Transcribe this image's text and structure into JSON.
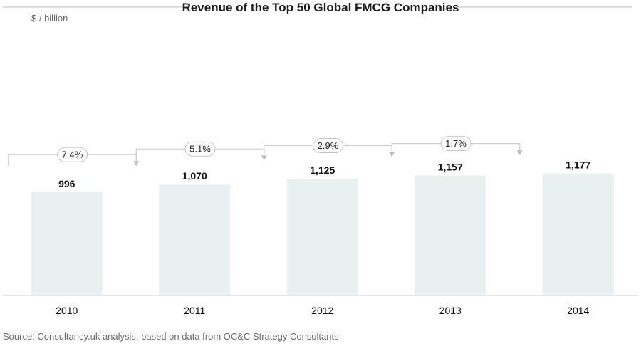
{
  "chart_data": {
    "type": "bar",
    "title": "Revenue of the Top 50 Global FMCG Companies",
    "ylabel": "$ / billion",
    "xlabel": "",
    "categories": [
      "2010",
      "2011",
      "2012",
      "2013",
      "2014"
    ],
    "values": [
      996,
      1070,
      1125,
      1157,
      1177
    ],
    "value_labels": [
      "996",
      "1,070",
      "1,125",
      "1,157",
      "1,177"
    ],
    "growth_labels": [
      "7.4%",
      "5.1%",
      "2.9%",
      "1.7%"
    ],
    "ylim": [
      0,
      1300
    ],
    "grid": false,
    "legend": "none",
    "colors": {
      "bar": "#e9f0f1",
      "connector": "#cfcfcf",
      "text": "#111111"
    }
  },
  "footer": {
    "source": "Source: Consultancy.uk analysis, based on data from OC&C Strategy Consultants"
  }
}
